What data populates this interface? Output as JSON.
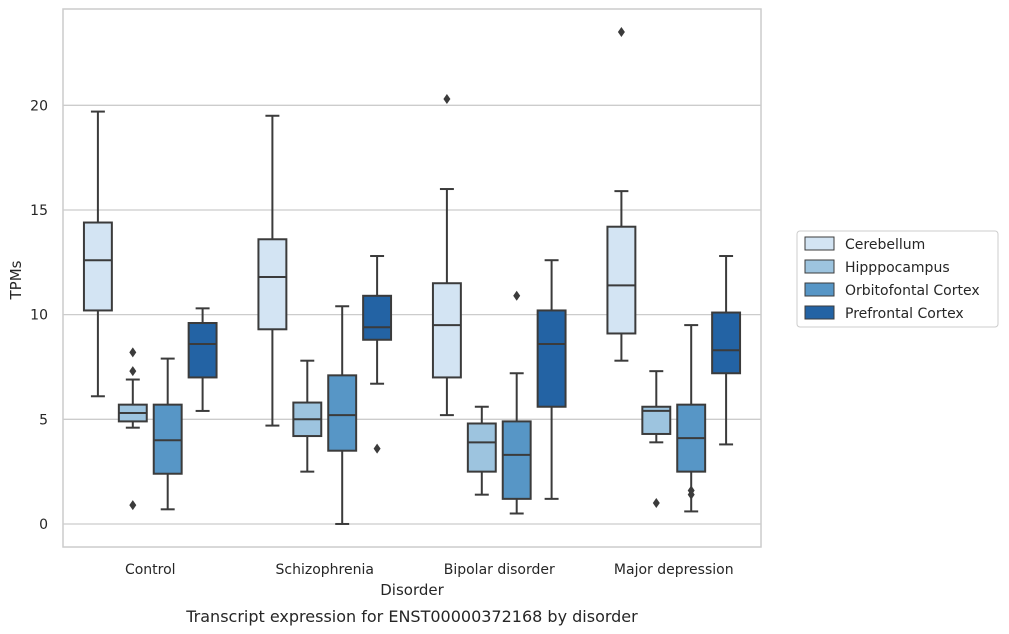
{
  "chart_data": {
    "type": "box",
    "xlabel": "Disorder",
    "ylabel": "TPMs",
    "caption": "Transcript expression for ENST00000372168 by disorder",
    "ylim": [
      -1.1,
      24.6
    ],
    "yticks": [
      0,
      5,
      10,
      15,
      20
    ],
    "grid": true,
    "legend_position": "right",
    "categories": [
      "Control",
      "Schizophrenia",
      "Bipolar disorder",
      "Major depression"
    ],
    "series": [
      {
        "name": "Cerebellum",
        "color": "#d3e4f3",
        "boxes": [
          {
            "whisker_low": 6.1,
            "q1": 10.2,
            "median": 12.6,
            "q3": 14.4,
            "whisker_high": 19.7,
            "outliers": []
          },
          {
            "whisker_low": 4.7,
            "q1": 9.3,
            "median": 11.8,
            "q3": 13.6,
            "whisker_high": 19.5,
            "outliers": []
          },
          {
            "whisker_low": 5.2,
            "q1": 7.0,
            "median": 9.5,
            "q3": 11.5,
            "whisker_high": 16.0,
            "outliers": [
              20.3
            ]
          },
          {
            "whisker_low": 7.8,
            "q1": 9.1,
            "median": 11.4,
            "q3": 14.2,
            "whisker_high": 15.9,
            "outliers": [
              23.5
            ]
          }
        ]
      },
      {
        "name": "Hipppocampus",
        "color": "#9dc4df",
        "boxes": [
          {
            "whisker_low": 4.6,
            "q1": 4.9,
            "median": 5.3,
            "q3": 5.7,
            "whisker_high": 6.9,
            "outliers": [
              8.2,
              7.3,
              0.9
            ]
          },
          {
            "whisker_low": 2.5,
            "q1": 4.2,
            "median": 5.0,
            "q3": 5.8,
            "whisker_high": 7.8,
            "outliers": []
          },
          {
            "whisker_low": 1.4,
            "q1": 2.5,
            "median": 3.9,
            "q3": 4.8,
            "whisker_high": 5.6,
            "outliers": []
          },
          {
            "whisker_low": 3.9,
            "q1": 4.3,
            "median": 5.4,
            "q3": 5.6,
            "whisker_high": 7.3,
            "outliers": [
              1.0
            ]
          }
        ]
      },
      {
        "name": "Orbitofontal Cortex",
        "color": "#5796c6",
        "boxes": [
          {
            "whisker_low": 0.7,
            "q1": 2.4,
            "median": 4.0,
            "q3": 5.7,
            "whisker_high": 7.9,
            "outliers": []
          },
          {
            "whisker_low": 0.0,
            "q1": 3.5,
            "median": 5.2,
            "q3": 7.1,
            "whisker_high": 10.4,
            "outliers": []
          },
          {
            "whisker_low": 0.5,
            "q1": 1.2,
            "median": 3.3,
            "q3": 4.9,
            "whisker_high": 7.2,
            "outliers": [
              10.9
            ]
          },
          {
            "whisker_low": 0.6,
            "q1": 2.5,
            "median": 4.1,
            "q3": 5.7,
            "whisker_high": 9.5,
            "outliers": [
              1.6,
              1.4
            ]
          }
        ]
      },
      {
        "name": "Prefrontal Cortex",
        "color": "#2363a4",
        "boxes": [
          {
            "whisker_low": 5.4,
            "q1": 7.0,
            "median": 8.6,
            "q3": 9.6,
            "whisker_high": 10.3,
            "outliers": []
          },
          {
            "whisker_low": 6.7,
            "q1": 8.8,
            "median": 9.4,
            "q3": 10.9,
            "whisker_high": 12.8,
            "outliers": [
              3.6
            ]
          },
          {
            "whisker_low": 1.2,
            "q1": 5.6,
            "median": 8.6,
            "q3": 10.2,
            "whisker_high": 12.6,
            "outliers": []
          },
          {
            "whisker_low": 3.8,
            "q1": 7.2,
            "median": 8.3,
            "q3": 10.1,
            "whisker_high": 12.8,
            "outliers": []
          }
        ]
      }
    ]
  }
}
